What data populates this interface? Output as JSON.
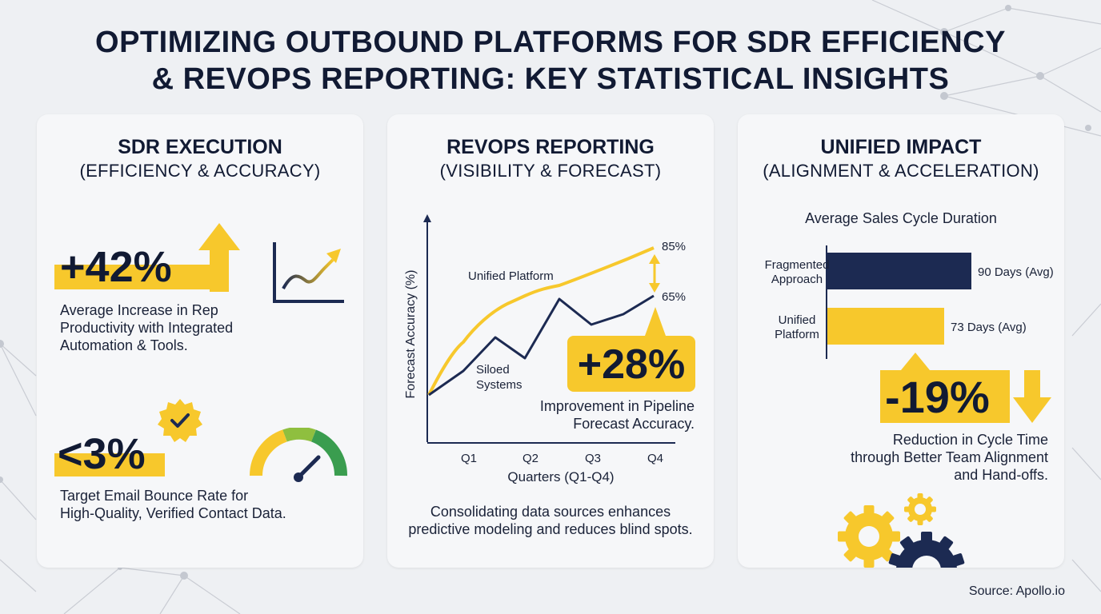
{
  "title": {
    "line1": "OPTIMIZING OUTBOUND PLATFORMS FOR SDR EFFICIENCY",
    "line2": "& REVOPS REPORTING: KEY STATISTICAL INSIGHTS"
  },
  "colors": {
    "navy": "#1c2a52",
    "yellow": "#f7c82c",
    "green": "#3a9d4f",
    "background": "#eef0f3"
  },
  "sdr": {
    "heading": "SDR EXECUTION",
    "subheading": "(EFFICIENCY & ACCURACY)",
    "stat1": {
      "value": "+42%",
      "description_lines": [
        "Average Increase in Rep",
        "Productivity with Integrated",
        "Automation & Tools."
      ]
    },
    "stat2": {
      "value": "<3%",
      "description_lines": [
        "Target Email Bounce Rate for",
        "High-Quality, Verified Contact Data."
      ]
    },
    "icons": [
      "up-arrow-icon",
      "trend-chart-icon",
      "badge-check-icon",
      "gauge-icon"
    ]
  },
  "revops": {
    "heading": "REVOPS REPORTING",
    "subheading": "(VISIBILITY & FORECAST)",
    "stat": {
      "value": "+28%",
      "description_lines": [
        "Improvement in Pipeline",
        "Forecast Accuracy."
      ]
    },
    "footer_lines": [
      "Consolidating data sources enhances",
      "predictive modeling and reduces blind spots."
    ]
  },
  "unified": {
    "heading": "UNIFIED IMPACT",
    "subheading": "(ALIGNMENT & ACCELERATION)",
    "stat": {
      "value": "-19%",
      "description_lines": [
        "Reduction in Cycle Time",
        "through Better Team Alignment",
        "and Hand-offs."
      ]
    },
    "icons": [
      "gears-icon"
    ]
  },
  "source": "Source: Apollo.io",
  "chart_data": [
    {
      "type": "line",
      "title": "",
      "xlabel": "Quarters (Q1-Q4)",
      "ylabel": "Forecast Accuracy (%)",
      "categories": [
        "Q1",
        "Q2",
        "Q3",
        "Q4"
      ],
      "series": [
        {
          "name": "Unified Platform",
          "color": "#f7c82c",
          "end_label": "85%",
          "end_value": 85
        },
        {
          "name": "Siloed Systems",
          "color": "#1c2a52",
          "end_label": "65%",
          "end_value": 65
        }
      ],
      "annotation": "+28%",
      "grid": false
    },
    {
      "type": "bar",
      "orientation": "horizontal",
      "title": "Average Sales Cycle Duration",
      "categories": [
        [
          "Fragmented",
          "Approach"
        ],
        [
          "Unified",
          "Platform"
        ]
      ],
      "values": [
        90,
        73
      ],
      "value_labels": [
        "90 Days (Avg)",
        "73 Days (Avg)"
      ],
      "colors": [
        "#1c2a52",
        "#f7c82c"
      ],
      "xlim": [
        0,
        100
      ],
      "annotation": "-19%"
    }
  ]
}
